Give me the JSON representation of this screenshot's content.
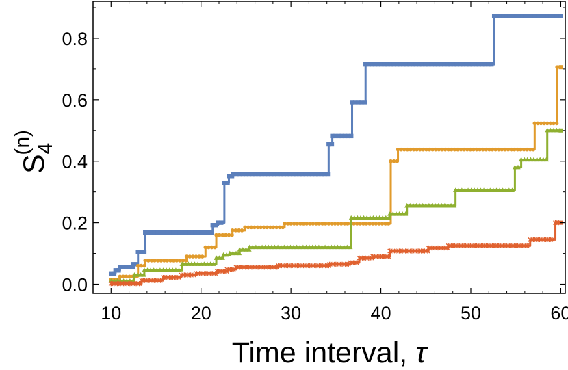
{
  "chart_data": {
    "type": "line",
    "title": "",
    "xlabel": "Time interval, ",
    "xlabel_symbol": "τ",
    "ylabel_base": "S",
    "ylabel_subscript": "4",
    "ylabel_superscript": "(n)",
    "xlim": [
      8,
      60.5
    ],
    "ylim": [
      -0.03,
      0.92
    ],
    "x_ticks": [
      10,
      20,
      30,
      40,
      50,
      60
    ],
    "x_tick_labels": [
      "10",
      "20",
      "30",
      "40",
      "50",
      "60"
    ],
    "y_ticks": [
      0.0,
      0.2,
      0.4,
      0.6,
      0.8
    ],
    "y_tick_labels": [
      "0.0",
      "0.2",
      "0.4",
      "0.6",
      "0.8"
    ],
    "grid": false,
    "legend": "none",
    "step_style": "post",
    "series": [
      {
        "color": "#5b7fbb",
        "marker": "square",
        "points": [
          [
            10,
            0.035
          ],
          [
            10.5,
            0.045
          ],
          [
            11,
            0.055
          ],
          [
            12.5,
            0.065
          ],
          [
            13,
            0.105
          ],
          [
            13.8,
            0.168
          ],
          [
            21.3,
            0.192
          ],
          [
            21.9,
            0.2
          ],
          [
            22.6,
            0.33
          ],
          [
            23.1,
            0.352
          ],
          [
            23.6,
            0.357
          ],
          [
            34.2,
            0.455
          ],
          [
            34.6,
            0.482
          ],
          [
            36.8,
            0.592
          ],
          [
            38.3,
            0.715
          ],
          [
            52.6,
            0.872
          ],
          [
            60,
            0.872
          ]
        ]
      },
      {
        "color": "#e19b2c",
        "marker": "circle",
        "points": [
          [
            10,
            0.015
          ],
          [
            11,
            0.025
          ],
          [
            13,
            0.06
          ],
          [
            13.8,
            0.077
          ],
          [
            18.4,
            0.09
          ],
          [
            20.5,
            0.12
          ],
          [
            21.7,
            0.16
          ],
          [
            23.5,
            0.175
          ],
          [
            24.9,
            0.185
          ],
          [
            29.3,
            0.197
          ],
          [
            41.1,
            0.4
          ],
          [
            41.9,
            0.438
          ],
          [
            57.1,
            0.523
          ],
          [
            59.6,
            0.706
          ],
          [
            60,
            0.706
          ]
        ]
      },
      {
        "color": "#8fb030",
        "marker": "triangle",
        "points": [
          [
            10,
            0.01
          ],
          [
            12.6,
            0.03
          ],
          [
            13.7,
            0.045
          ],
          [
            17.9,
            0.065
          ],
          [
            21.7,
            0.085
          ],
          [
            22.5,
            0.095
          ],
          [
            23.2,
            0.1
          ],
          [
            24.3,
            0.112
          ],
          [
            25.4,
            0.12
          ],
          [
            36.7,
            0.215
          ],
          [
            41,
            0.228
          ],
          [
            42.9,
            0.255
          ],
          [
            48.3,
            0.305
          ],
          [
            54.9,
            0.38
          ],
          [
            55.6,
            0.405
          ],
          [
            58.5,
            0.5
          ],
          [
            60,
            0.5
          ]
        ]
      },
      {
        "color": "#e0612f",
        "marker": "star",
        "points": [
          [
            10,
            0.002
          ],
          [
            13.4,
            0.012
          ],
          [
            15.8,
            0.022
          ],
          [
            17.8,
            0.03
          ],
          [
            19.5,
            0.035
          ],
          [
            21.8,
            0.042
          ],
          [
            22.9,
            0.048
          ],
          [
            23.9,
            0.055
          ],
          [
            28.6,
            0.06
          ],
          [
            34.3,
            0.065
          ],
          [
            36.6,
            0.07
          ],
          [
            37.6,
            0.085
          ],
          [
            39.1,
            0.09
          ],
          [
            41,
            0.108
          ],
          [
            45.3,
            0.118
          ],
          [
            47.5,
            0.125
          ],
          [
            56.6,
            0.145
          ],
          [
            59.4,
            0.2
          ],
          [
            60,
            0.2
          ]
        ]
      }
    ]
  }
}
